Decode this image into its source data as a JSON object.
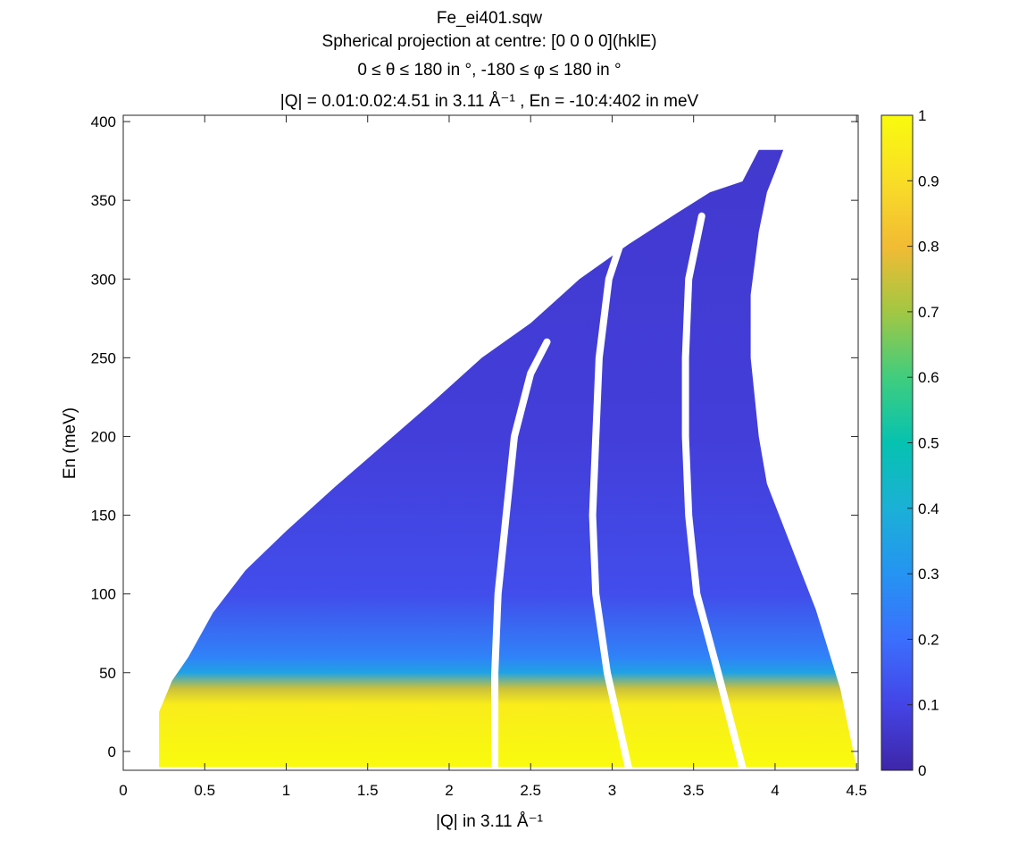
{
  "figure": {
    "title_lines": [
      "Fe_ei401.sqw",
      "Spherical projection at centre: [0 0 0 0](hklE)",
      "0 ≤ θ ≤ 180 in °, -180 ≤ φ ≤ 180 in °",
      "|Q| = 0.01:0.02:4.51 in 3.11 Å⁻¹ , En = -10:4:402 in meV"
    ]
  },
  "chart_data": {
    "type": "heatmap",
    "xlabel": "|Q| in 3.11 Å⁻¹",
    "ylabel": "En (meV)",
    "xlim": [
      0,
      4.51
    ],
    "ylim": [
      -12,
      404
    ],
    "x_ticks": [
      "0",
      "0.5",
      "1",
      "1.5",
      "2",
      "2.5",
      "3",
      "3.5",
      "4",
      "4.5"
    ],
    "y_ticks": [
      "0",
      "50",
      "100",
      "150",
      "200",
      "250",
      "300",
      "350",
      "400"
    ],
    "colorbar": {
      "range": [
        0,
        1
      ],
      "ticks": [
        "0",
        "0.1",
        "0.2",
        "0.3",
        "0.4",
        "0.5",
        "0.6",
        "0.7",
        "0.8",
        "0.9",
        "1"
      ],
      "colormap": "parula"
    },
    "coverage": {
      "lower_edge": [
        [
          0.22,
          -10
        ],
        [
          0.22,
          25
        ],
        [
          0.3,
          45
        ],
        [
          0.4,
          60
        ],
        [
          0.55,
          88
        ],
        [
          0.75,
          115
        ],
        [
          1.0,
          140
        ],
        [
          1.3,
          168
        ],
        [
          1.6,
          195
        ],
        [
          1.9,
          222
        ],
        [
          2.2,
          250
        ],
        [
          2.5,
          272
        ],
        [
          2.8,
          300
        ],
        [
          3.1,
          322
        ],
        [
          3.4,
          342
        ],
        [
          3.6,
          355
        ],
        [
          3.8,
          362
        ]
      ],
      "right_edge": [
        [
          3.9,
          382
        ],
        [
          4.05,
          382
        ],
        [
          4.0,
          368
        ],
        [
          3.95,
          355
        ],
        [
          3.9,
          330
        ],
        [
          3.85,
          290
        ],
        [
          3.85,
          250
        ],
        [
          3.9,
          200
        ],
        [
          3.95,
          170
        ],
        [
          4.1,
          130
        ],
        [
          4.25,
          90
        ],
        [
          4.4,
          40
        ],
        [
          4.5,
          -10
        ]
      ],
      "gaps": [
        {
          "points": [
            [
              2.28,
              -10
            ],
            [
              2.28,
              50
            ],
            [
              2.3,
              100
            ],
            [
              2.35,
              150
            ],
            [
              2.4,
              200
            ],
            [
              2.5,
              240
            ],
            [
              2.6,
              260
            ]
          ]
        },
        {
          "points": [
            [
              3.1,
              -10
            ],
            [
              2.97,
              50
            ],
            [
              2.9,
              100
            ],
            [
              2.88,
              150
            ],
            [
              2.9,
              200
            ],
            [
              2.92,
              250
            ],
            [
              2.98,
              300
            ],
            [
              3.05,
              322
            ]
          ]
        },
        {
          "points": [
            [
              3.8,
              -10
            ],
            [
              3.65,
              50
            ],
            [
              3.52,
              100
            ],
            [
              3.47,
              150
            ],
            [
              3.45,
              200
            ],
            [
              3.45,
              250
            ],
            [
              3.47,
              300
            ],
            [
              3.55,
              340
            ]
          ]
        }
      ],
      "intensity_profile": [
        {
          "en": -10,
          "value": 1.0
        },
        {
          "en": 30,
          "value": 0.95
        },
        {
          "en": 40,
          "value": 0.75
        },
        {
          "en": 50,
          "value": 0.35
        },
        {
          "en": 60,
          "value": 0.25
        },
        {
          "en": 100,
          "value": 0.12
        },
        {
          "en": 200,
          "value": 0.08
        },
        {
          "en": 400,
          "value": 0.06
        }
      ]
    }
  }
}
